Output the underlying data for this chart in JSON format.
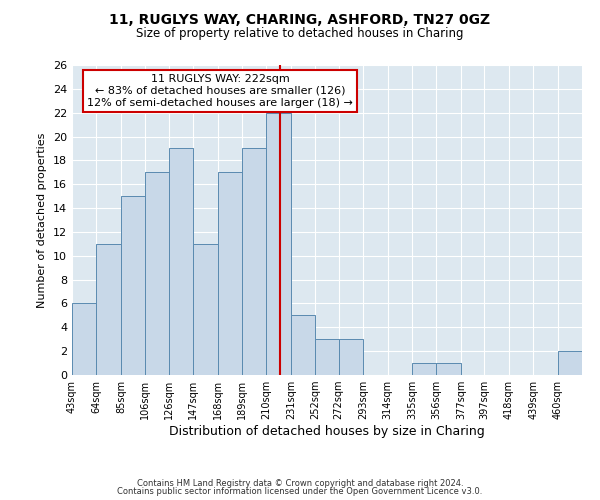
{
  "title1": "11, RUGLYS WAY, CHARING, ASHFORD, TN27 0GZ",
  "title2": "Size of property relative to detached houses in Charing",
  "xlabel": "Distribution of detached houses by size in Charing",
  "ylabel": "Number of detached properties",
  "bin_labels": [
    "43sqm",
    "64sqm",
    "85sqm",
    "106sqm",
    "126sqm",
    "147sqm",
    "168sqm",
    "189sqm",
    "210sqm",
    "231sqm",
    "252sqm",
    "272sqm",
    "293sqm",
    "314sqm",
    "335sqm",
    "356sqm",
    "377sqm",
    "397sqm",
    "418sqm",
    "439sqm",
    "460sqm"
  ],
  "bin_edges": [
    43,
    64,
    85,
    106,
    126,
    147,
    168,
    189,
    210,
    231,
    252,
    272,
    293,
    314,
    335,
    356,
    377,
    397,
    418,
    439,
    460,
    481
  ],
  "counts": [
    6,
    11,
    15,
    17,
    19,
    11,
    17,
    19,
    22,
    5,
    3,
    3,
    0,
    0,
    1,
    1,
    0,
    0,
    0,
    0,
    2
  ],
  "bar_color": "#c8d8e8",
  "bar_edge_color": "#5a8ab0",
  "property_size": 222,
  "vline_color": "#cc0000",
  "annotation_line1": "11 RUGLYS WAY: 222sqm",
  "annotation_line2": "← 83% of detached houses are smaller (126)",
  "annotation_line3": "12% of semi-detached houses are larger (18) →",
  "annotation_box_color": "#ffffff",
  "annotation_box_edge": "#cc0000",
  "ylim": [
    0,
    26
  ],
  "yticks": [
    0,
    2,
    4,
    6,
    8,
    10,
    12,
    14,
    16,
    18,
    20,
    22,
    24,
    26
  ],
  "footer1": "Contains HM Land Registry data © Crown copyright and database right 2024.",
  "footer2": "Contains public sector information licensed under the Open Government Licence v3.0.",
  "bg_color": "#dde8f0"
}
